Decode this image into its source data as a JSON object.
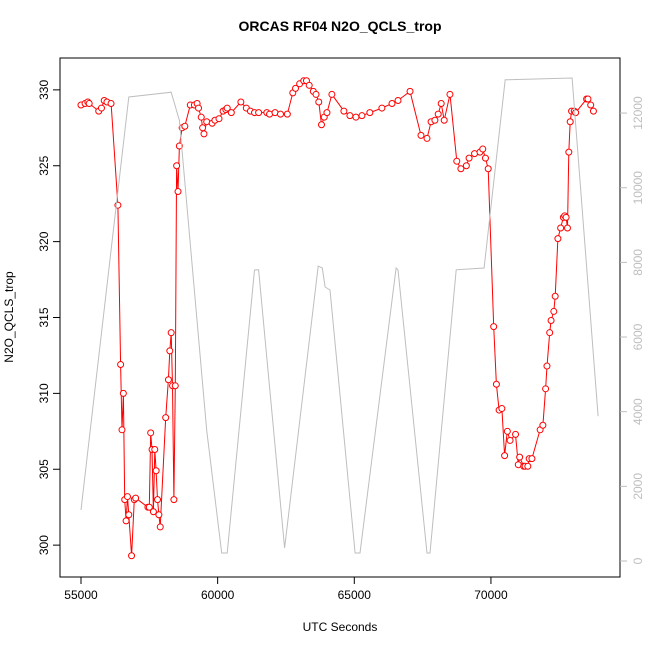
{
  "chart_data": {
    "type": "line",
    "title": "ORCAS RF04 N2O_QCLS_trop",
    "x_label": "UTC Seconds",
    "y_label": "N2O_QCLS_trop",
    "xlim": [
      54232,
      74722
    ],
    "ylim": [
      297.9,
      332.1
    ],
    "y2lim": [
      -429,
      13475
    ],
    "xticks": [
      55000,
      60000,
      65000,
      70000
    ],
    "yticks": [
      300,
      305,
      310,
      315,
      320,
      325,
      330
    ],
    "y2ticks": [
      0,
      2000,
      4000,
      6000,
      8000,
      10000,
      12000
    ],
    "y2_color": "#bebebe",
    "series": [
      {
        "color": "#ff0000",
        "markers": true,
        "x": [
          55000,
          55150,
          55250,
          55300,
          55650,
          55750,
          55850,
          55950,
          56100,
          56350,
          56450,
          56500,
          56550,
          56600,
          56650,
          56700,
          56750,
          56850,
          56950,
          57000,
          57450,
          57500,
          57550,
          57600,
          57650,
          57700,
          57750,
          57800,
          57850,
          57900,
          58100,
          58200,
          58250,
          58300,
          58350,
          58400,
          58450,
          58500,
          58550,
          58600,
          58700,
          58800,
          59000,
          59150,
          59250,
          59300,
          59400,
          59450,
          59500,
          59600,
          59800,
          59900,
          60050,
          60200,
          60300,
          60350,
          60500,
          60850,
          61050,
          61200,
          61350,
          61500,
          61800,
          61900,
          62100,
          62300,
          62550,
          62750,
          62850,
          63000,
          63150,
          63250,
          63350,
          63500,
          63600,
          63700,
          63800,
          63900,
          64000,
          64180,
          64620,
          64840,
          65060,
          65280,
          65570,
          66010,
          66380,
          66600,
          67040,
          67440,
          67660,
          67810,
          67950,
          68070,
          68180,
          68290,
          68500,
          68750,
          68900,
          69100,
          69200,
          69400,
          69600,
          69700,
          69800,
          69900,
          70100,
          70200,
          70300,
          70400,
          70500,
          70600,
          70700,
          70900,
          71000,
          71050,
          71200,
          71250,
          71350,
          71400,
          71500,
          71800,
          71900,
          72000,
          72050,
          72150,
          72200,
          72300,
          72350,
          72450,
          72550,
          72650,
          72700,
          72750,
          72800,
          72850,
          72900,
          72950,
          73050,
          73100,
          73500,
          73550,
          73650,
          73750
        ],
        "values": [
          329.0,
          329.1,
          329.2,
          329.1,
          328.6,
          328.8,
          329.3,
          329.2,
          329.1,
          322.4,
          311.9,
          307.6,
          310.0,
          303.0,
          301.6,
          303.2,
          302.0,
          299.3,
          303.0,
          303.1,
          302.5,
          302.5,
          307.4,
          306.3,
          302.2,
          306.3,
          304.9,
          303.0,
          302.0,
          301.2,
          308.4,
          310.9,
          312.8,
          314.0,
          310.5,
          303.0,
          310.5,
          325.0,
          323.3,
          326.3,
          327.5,
          327.6,
          329.0,
          329.0,
          329.1,
          328.8,
          328.2,
          327.5,
          327.1,
          327.9,
          327.8,
          328.0,
          328.1,
          328.6,
          328.7,
          328.8,
          328.5,
          329.2,
          328.8,
          328.6,
          328.5,
          328.5,
          328.5,
          328.4,
          328.5,
          328.4,
          328.4,
          329.8,
          330.1,
          330.4,
          330.6,
          330.6,
          330.3,
          329.9,
          329.7,
          329.2,
          327.7,
          328.2,
          328.5,
          329.7,
          328.6,
          328.3,
          328.2,
          328.3,
          328.5,
          328.8,
          329.1,
          329.3,
          329.9,
          327.0,
          326.8,
          327.9,
          328.0,
          328.4,
          329.1,
          328.0,
          329.7,
          325.3,
          324.8,
          325.0,
          325.5,
          325.8,
          325.9,
          326.1,
          325.5,
          324.8,
          314.4,
          310.6,
          308.9,
          309.0,
          305.9,
          307.5,
          306.9,
          307.3,
          305.3,
          305.8,
          305.2,
          305.2,
          305.2,
          305.7,
          305.7,
          307.6,
          307.9,
          310.3,
          311.8,
          314.0,
          314.8,
          315.4,
          316.4,
          320.2,
          320.9,
          321.6,
          321.7,
          321.6,
          320.9,
          325.9,
          327.9,
          328.6,
          328.6,
          328.5,
          329.4,
          329.4,
          329.0,
          328.6
        ]
      },
      {
        "color": "#bebebe",
        "markers": false,
        "axis": "y2",
        "x": [
          55000,
          56750,
          58300,
          58600,
          59600,
          60150,
          60350,
          61350,
          61500,
          62450,
          63680,
          63830,
          63930,
          64110,
          65030,
          65210,
          66530,
          66600,
          67660,
          67770,
          68730,
          69750,
          70520,
          72970,
          73920
        ],
        "values": [
          1366,
          12430,
          12560,
          11800,
          3500,
          214,
          214,
          7795,
          7800,
          348,
          7900,
          7850,
          7340,
          7260,
          214,
          214,
          7850,
          7800,
          214,
          214,
          7800,
          7850,
          12890,
          12940,
          3880
        ]
      }
    ]
  }
}
